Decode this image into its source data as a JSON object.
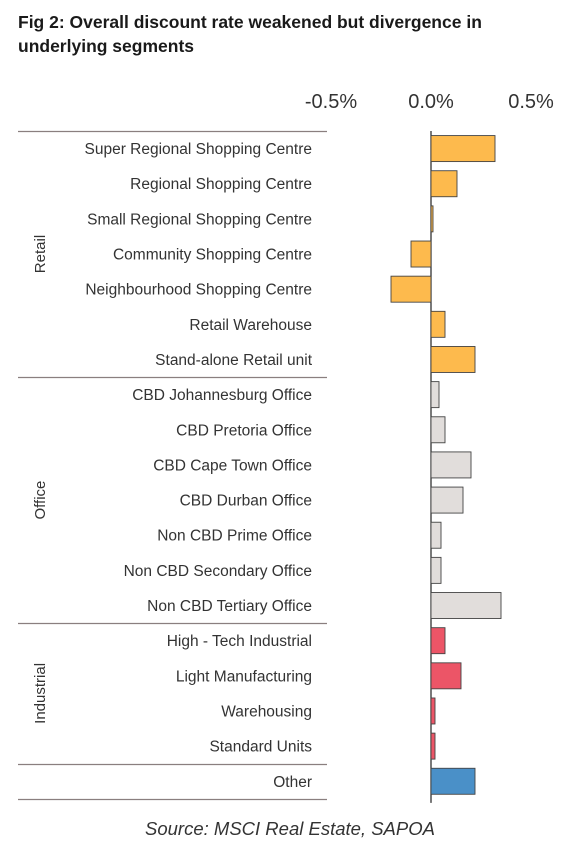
{
  "title": "Fig 2:  Overall discount rate weakened but divergence in underlying segments",
  "source": "Source: MSCI Real Estate, SAPOA",
  "colors": {
    "retail": "#FDBA4D",
    "office": "#E1DDDB",
    "industrial": "#EC5567",
    "other": "#4A90C8",
    "bar_stroke": "#444444",
    "axis": "#333333",
    "rule": "#8a7f7f"
  },
  "chart_data": {
    "type": "bar",
    "orientation": "horizontal",
    "title": "Fig 2:  Overall discount rate weakened but divergence in underlying segments",
    "xlim": [
      -0.5,
      0.5
    ],
    "x_ticks": [
      "-0.5%",
      "0.0%",
      "0.5%"
    ],
    "x_tick_values": [
      -0.5,
      0.0,
      0.5
    ],
    "tick_position": "top",
    "groups": [
      {
        "name": "Retail",
        "start": 0,
        "end": 6
      },
      {
        "name": "Office",
        "start": 7,
        "end": 13
      },
      {
        "name": "Industrial",
        "start": 14,
        "end": 17
      }
    ],
    "categories": [
      "Super Regional Shopping Centre",
      "Regional Shopping Centre",
      "Small Regional Shopping Centre",
      "Community Shopping Centre",
      "Neighbourhood Shopping Centre",
      "Retail Warehouse",
      "Stand-alone Retail unit",
      "CBD Johannesburg Office",
      "CBD Pretoria Office",
      "CBD Cape Town Office",
      "CBD Durban Office",
      "Non CBD Prime Office",
      "Non CBD Secondary Office",
      "Non CBD Tertiary Office",
      "High - Tech Industrial",
      "Light Manufacturing",
      "Warehousing",
      "Standard Units",
      "Other"
    ],
    "values": [
      0.32,
      0.13,
      0.01,
      -0.1,
      -0.2,
      0.07,
      0.22,
      0.04,
      0.07,
      0.2,
      0.16,
      0.05,
      0.05,
      0.35,
      0.07,
      0.15,
      0.02,
      0.02,
      0.22
    ],
    "segments": [
      "retail",
      "retail",
      "retail",
      "retail",
      "retail",
      "retail",
      "retail",
      "office",
      "office",
      "office",
      "office",
      "office",
      "office",
      "office",
      "industrial",
      "industrial",
      "industrial",
      "industrial",
      "other"
    ]
  }
}
